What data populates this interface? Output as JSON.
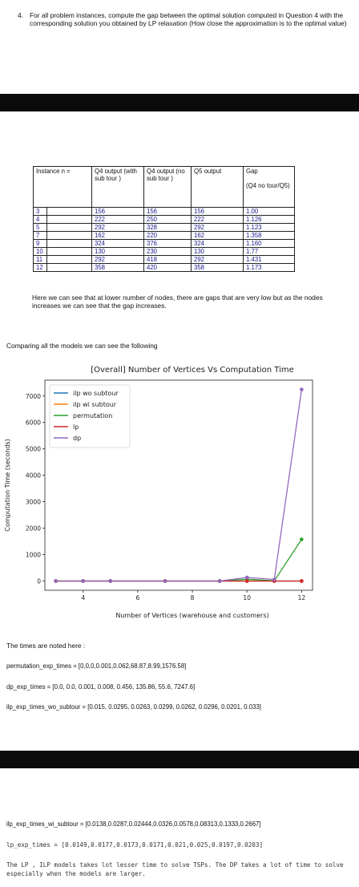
{
  "question": {
    "number": "4.",
    "text": "For all problem instances, compute the gap between the optimal solution computed in Question 4 with the corresponding solution you obtained by LP relaxation (How close the approximation is to the optimal value)"
  },
  "table": {
    "headers": [
      "Instance n =",
      "Q4 output (with sub tour )",
      "Q4 output (no sub tour )",
      "Q5 output",
      "Gap\n\n(Q4 no tour/Q5)"
    ],
    "row_numbers": [
      "3",
      "4",
      "5",
      "7",
      "9",
      "10",
      "11",
      "12"
    ],
    "rows": [
      [
        "156",
        "156",
        "156",
        "1.00"
      ],
      [
        "222",
        "250",
        "222",
        "1.126"
      ],
      [
        "292",
        "328",
        "292",
        "1.123"
      ],
      [
        "162",
        "220",
        "162",
        "1.358"
      ],
      [
        "324",
        "376",
        "324",
        "1.160"
      ],
      [
        "130",
        "230",
        "130",
        "1.77"
      ],
      [
        "292",
        "418",
        "292",
        "1.431"
      ],
      [
        "358",
        "420",
        "358",
        "1.173"
      ]
    ]
  },
  "note": "Here we can see that at lower number of nodes, there are gaps that are very low but as the nodes increases we can see that the gap increases.",
  "compare_text": "Comparing all the models we can see the following",
  "chart_data": {
    "type": "line",
    "title": "[Overall] Number of Vertices Vs Computation Time",
    "xlabel": "Number of Vertices (warehouse and customers)",
    "ylabel": "Computation Time (seconds)",
    "x": [
      3,
      4,
      5,
      7,
      9,
      10,
      11,
      12
    ],
    "xlim": [
      2.6,
      12.4
    ],
    "ylim": [
      -350,
      7600
    ],
    "xticks": [
      4,
      6,
      8,
      10,
      12
    ],
    "yticks": [
      0,
      1000,
      2000,
      3000,
      4000,
      5000,
      6000,
      7000
    ],
    "legend": "upper-left",
    "grid": false,
    "series": [
      {
        "name": "ilp wo subtour",
        "color": "#1f77b4",
        "values": [
          0.015,
          0.0295,
          0.0263,
          0.0299,
          0.0262,
          0.0296,
          0.0201,
          0.033
        ]
      },
      {
        "name": "ilp wi subtour",
        "color": "#ff7f0e",
        "values": [
          0.0138,
          0.0287,
          0.02444,
          0.0326,
          0.0578,
          0.08313,
          0.1333,
          0.2667
        ]
      },
      {
        "name": "permutation",
        "color": "#2ca02c",
        "values": [
          0,
          0,
          0,
          0.001,
          0.062,
          68.87,
          8.99,
          1576.58
        ]
      },
      {
        "name": "lp",
        "color": "#d62728",
        "values": [
          0.0149,
          0.0177,
          0.0173,
          0.0171,
          0.021,
          0.025,
          0.0197,
          0.0203
        ]
      },
      {
        "name": "dp",
        "color": "#9467bd",
        "values": [
          0.0,
          0.0,
          0.001,
          0.008,
          0.456,
          135.86,
          55.6,
          7247.6
        ]
      }
    ]
  },
  "times_title": "The times are noted here :",
  "times": {
    "permutation": "permutation_exp_times = [0,0,0,0.001,0.062,68.87,8.99,1576.58]",
    "dp": "dp_exp_times = [0.0, 0.0, 0.001, 0.008, 0.456, 135.86, 55.6, 7247.6]",
    "ilp_wo": "ilp_exp_times_wo_subtour = [0.015, 0.0295, 0.0263, 0.0299, 0.0262, 0.0296, 0.0201, 0.033]",
    "ilp_wi": "ilp_exp_times_wi_subtour = [0.0138,0.0287,0.02444,0.0326,0.0578,0.08313,0.1333,0.2667]",
    "lp": "lp_exp_times = [0.0149,0.0177,0.0173,0.0171,0.021,0.025,0.0197,0.0203]"
  },
  "conclusion": "The LP , ILP models takes lot lesser time to solve TSPs. The DP takes a lot of time to solve especially when the models are larger."
}
